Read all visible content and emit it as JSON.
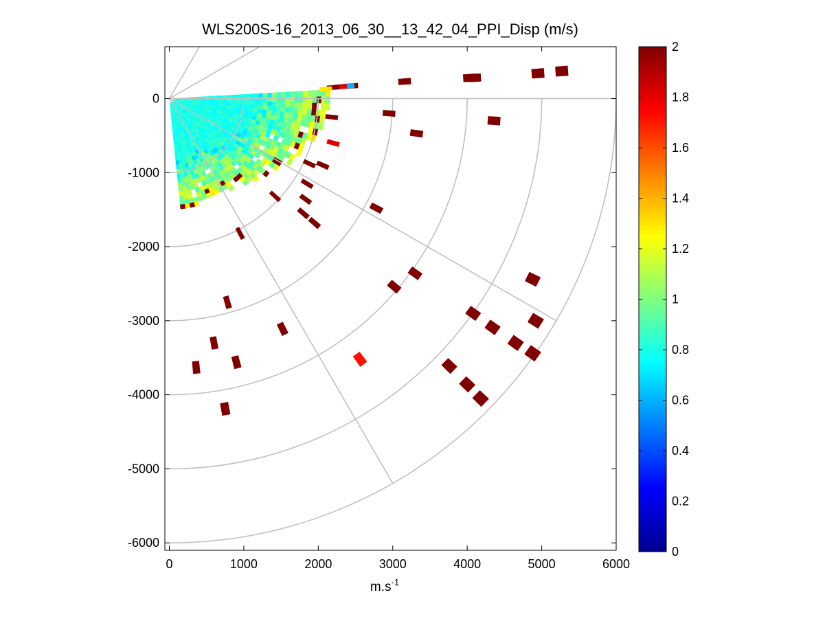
{
  "chart_data": {
    "type": "heatmap",
    "subtype": "polar-ppi-scan",
    "title": "WLS200S-16_2013_06_30__13_42_04_PPI_Disp (m/s)",
    "xlabel_base": "m.s",
    "xlabel_exp": "-1",
    "ylabel": "",
    "xlim": [
      -60,
      6000
    ],
    "ylim": [
      -6100,
      700
    ],
    "xticks": [
      0,
      1000,
      2000,
      3000,
      4000,
      5000,
      6000
    ],
    "xtick_labels": [
      "0",
      "1000",
      "2000",
      "3000",
      "4000",
      "5000",
      "6000"
    ],
    "yticks": [
      0,
      -1000,
      -2000,
      -3000,
      -4000,
      -5000,
      -6000
    ],
    "ytick_labels": [
      "0",
      "-1000",
      "-2000",
      "-3000",
      "-4000",
      "-5000",
      "-6000"
    ],
    "polar_grid": {
      "origin": [
        0,
        0
      ],
      "rings": [
        1000,
        2000,
        3000,
        4000,
        5000,
        6000
      ],
      "ring_angle_range_deg": [
        -90,
        0
      ],
      "spokes_deg": [
        0,
        -30,
        -60,
        30,
        60
      ],
      "spoke_length": 6000,
      "inner_spoke_length": 1400
    },
    "colorbar": {
      "colormap": "jet",
      "range": [
        0,
        2
      ],
      "ticks": [
        0,
        0.2,
        0.4,
        0.6,
        0.8,
        1,
        1.2,
        1.4,
        1.6,
        1.8,
        2
      ],
      "tick_labels": [
        "0",
        "0.2",
        "0.4",
        "0.6",
        "0.8",
        "1",
        "1.2",
        "1.4",
        "1.6",
        "1.8",
        "2"
      ]
    },
    "dense_scan": {
      "azimuth_start_deg": 2,
      "azimuth_end_deg": -85,
      "azimuth_step_deg": 2.5,
      "range_start": 60,
      "range_step": 60,
      "range_end_by_azimuth": [
        [
          2,
          2150
        ],
        [
          -5,
          2100
        ],
        [
          -15,
          2000
        ],
        [
          -25,
          1850
        ],
        [
          -35,
          1700
        ],
        [
          -45,
          1550
        ],
        [
          -55,
          1450
        ],
        [
          -65,
          1400
        ],
        [
          -75,
          1450
        ],
        [
          -85,
          1500
        ]
      ],
      "base_value": 0.8,
      "far_value": 1.15
    },
    "range_gates": [
      {
        "x": 2450,
        "y": 170,
        "v": 2.0
      },
      {
        "x": 2400,
        "y": 170,
        "v": 0.6
      },
      {
        "x": 2300,
        "y": 160,
        "v": 1.8
      },
      {
        "x": 2200,
        "y": 150,
        "v": 2.0
      },
      {
        "x": 2100,
        "y": 130,
        "v": 1.3
      },
      {
        "x": 3160,
        "y": 230,
        "v": 2.0
      },
      {
        "x": 4100,
        "y": 280,
        "v": 2.0
      },
      {
        "x": 4030,
        "y": 280,
        "v": 2.0
      },
      {
        "x": 4950,
        "y": 340,
        "v": 2.0
      },
      {
        "x": 5270,
        "y": 370,
        "v": 2.0
      },
      {
        "x": 2950,
        "y": -200,
        "v": 2.0
      },
      {
        "x": 3320,
        "y": -470,
        "v": 2.0
      },
      {
        "x": 4360,
        "y": -300,
        "v": 2.0
      },
      {
        "x": 2200,
        "y": -600,
        "v": 1.8
      },
      {
        "x": 2180,
        "y": -250,
        "v": 2.0
      },
      {
        "x": 2060,
        "y": -900,
        "v": 2.0
      },
      {
        "x": 1880,
        "y": -880,
        "v": 2.0
      },
      {
        "x": 1850,
        "y": -1150,
        "v": 2.0
      },
      {
        "x": 1830,
        "y": -1360,
        "v": 2.0
      },
      {
        "x": 1800,
        "y": -1550,
        "v": 2.0
      },
      {
        "x": 1950,
        "y": -1680,
        "v": 2.0
      },
      {
        "x": 2780,
        "y": -1480,
        "v": 2.0
      },
      {
        "x": 1420,
        "y": -1320,
        "v": 2.0
      },
      {
        "x": 950,
        "y": -1820,
        "v": 2.0
      },
      {
        "x": 3020,
        "y": -2540,
        "v": 2.0
      },
      {
        "x": 3300,
        "y": -2360,
        "v": 2.0
      },
      {
        "x": 4880,
        "y": -2440,
        "v": 2.0
      },
      {
        "x": 4080,
        "y": -2900,
        "v": 2.0
      },
      {
        "x": 4340,
        "y": -3090,
        "v": 2.0
      },
      {
        "x": 4920,
        "y": -3000,
        "v": 2.0
      },
      {
        "x": 4650,
        "y": -3300,
        "v": 2.0
      },
      {
        "x": 4880,
        "y": -3440,
        "v": 2.0
      },
      {
        "x": 3760,
        "y": -3610,
        "v": 2.0
      },
      {
        "x": 4000,
        "y": -3860,
        "v": 2.0
      },
      {
        "x": 4180,
        "y": -4050,
        "v": 2.0
      },
      {
        "x": 2560,
        "y": -3520,
        "v": 1.72
      },
      {
        "x": 1520,
        "y": -3110,
        "v": 2.0
      },
      {
        "x": 780,
        "y": -2750,
        "v": 2.0
      },
      {
        "x": 600,
        "y": -3300,
        "v": 2.0
      },
      {
        "x": 360,
        "y": -3630,
        "v": 2.0
      },
      {
        "x": 900,
        "y": -3560,
        "v": 2.0
      },
      {
        "x": 750,
        "y": -4190,
        "v": 2.0
      }
    ]
  }
}
